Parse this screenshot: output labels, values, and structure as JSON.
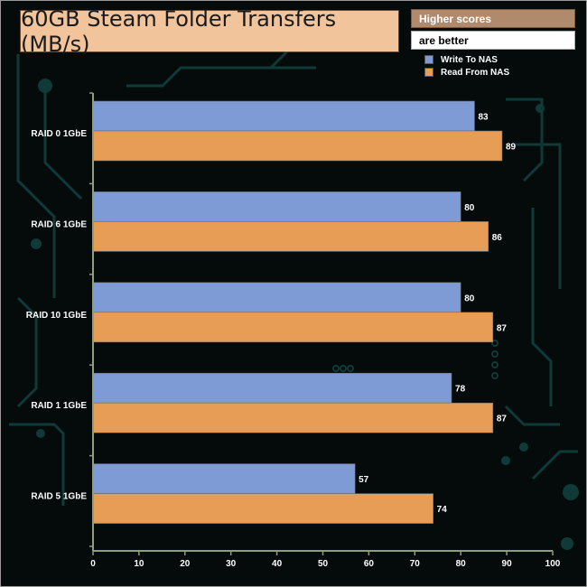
{
  "title": "60GB Steam Folder Transfers (MB/s)",
  "note": [
    "Higher scores",
    "are better"
  ],
  "colors": {
    "write": "#7e9bd6",
    "read": "#e89d56",
    "axis": "#8f9f7a",
    "labels": "#ffffff",
    "title_box": "#f2c49c"
  },
  "chart_data": {
    "type": "bar",
    "orientation": "horizontal",
    "title": "60GB Steam Folder Transfers (MB/s)",
    "categories": [
      "RAID 0 1GbE",
      "RAID 6 1GbE",
      "RAID 10 1GbE",
      "RAID 1 1GbE",
      "RAID 5 1GbE"
    ],
    "series": [
      {
        "name": "Write To NAS",
        "values": [
          83,
          80,
          80,
          78,
          57
        ]
      },
      {
        "name": "Read From NAS",
        "values": [
          89,
          86,
          87,
          87,
          74
        ]
      }
    ],
    "xlim": [
      0,
      100
    ],
    "xticks": [
      0,
      10,
      20,
      30,
      40,
      50,
      60,
      70,
      80,
      90,
      100
    ],
    "grid": false,
    "legend": "top-right"
  }
}
